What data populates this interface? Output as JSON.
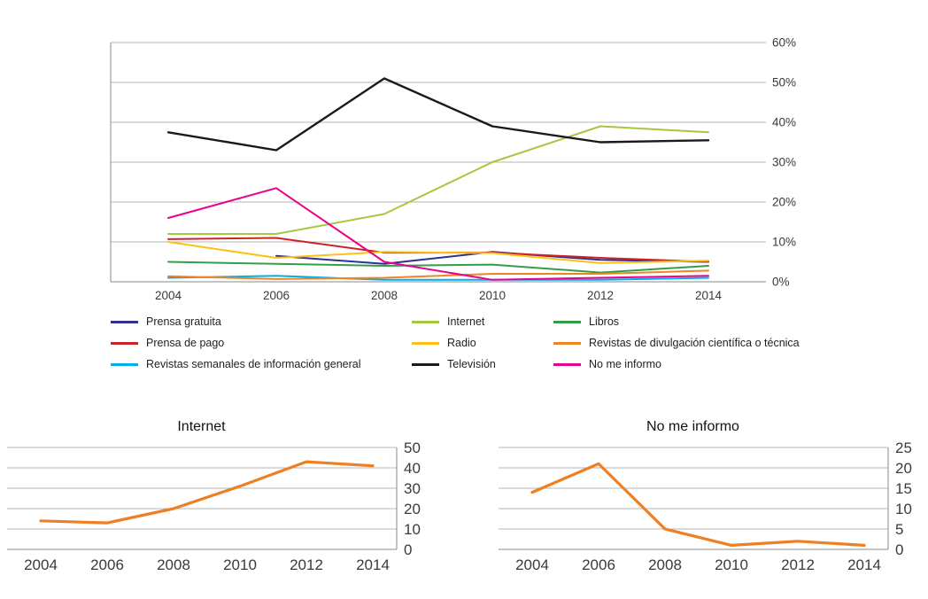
{
  "page": {
    "background": "#ffffff"
  },
  "chart_data": [
    {
      "id": "main",
      "type": "line",
      "title": "",
      "x": [
        2004,
        2006,
        2008,
        2010,
        2012,
        2014
      ],
      "ylim": [
        0,
        60
      ],
      "ytick_step": 10,
      "ytick_suffix": "%",
      "ytick_side": "right",
      "grid": true,
      "legend_position": "bottom",
      "series": [
        {
          "name": "Prensa gratuita",
          "color": "#2e3192",
          "values": [
            null,
            6.5,
            4.5,
            7.5,
            5.5,
            5
          ]
        },
        {
          "name": "Prensa de pago",
          "color": "#cc2229",
          "values": [
            10.7,
            11,
            7.3,
            7.3,
            6,
            5
          ]
        },
        {
          "name": "Revistas semanales de información general",
          "color": "#00aeef",
          "values": [
            1,
            1.5,
            0.5,
            0.5,
            0.5,
            1
          ]
        },
        {
          "name": "Internet",
          "color": "#a6c83d",
          "values": [
            12,
            12,
            17,
            30,
            39,
            37.5
          ]
        },
        {
          "name": "Radio",
          "color": "#fdc013",
          "values": [
            10,
            6,
            7.5,
            7.2,
            4.7,
            5.3
          ]
        },
        {
          "name": "Televisión",
          "color": "#1a1a1a",
          "width": 2.4,
          "values": [
            37.5,
            33,
            51,
            39,
            35,
            35.5
          ]
        },
        {
          "name": "Libros",
          "color": "#339e48",
          "values": [
            5,
            4.5,
            4,
            4.3,
            2.3,
            4
          ]
        },
        {
          "name": "Revistas de divulgación científica o técnica",
          "color": "#f0851f",
          "values": [
            1.4,
            0.7,
            1,
            2,
            2,
            2.8
          ]
        },
        {
          "name": "No me informo",
          "color": "#ec008c",
          "values": [
            16,
            23.5,
            5,
            0.5,
            1,
            1.5
          ]
        }
      ]
    },
    {
      "id": "internet_detail",
      "type": "line",
      "title": "Internet",
      "x": [
        2004,
        2006,
        2008,
        2010,
        2012,
        2014
      ],
      "ylim": [
        0,
        50
      ],
      "ytick_step": 10,
      "ytick_suffix": "",
      "ytick_side": "right",
      "grid": true,
      "series": [
        {
          "name": "Internet",
          "color": "#ee7f22",
          "values": [
            14,
            13,
            20,
            31,
            43,
            41
          ]
        }
      ]
    },
    {
      "id": "no_me_informo_detail",
      "type": "line",
      "title": "No me informo",
      "x": [
        2004,
        2006,
        2008,
        2010,
        2012,
        2014
      ],
      "ylim": [
        0,
        25
      ],
      "ytick_step": 5,
      "ytick_suffix": "",
      "ytick_side": "right",
      "grid": true,
      "series": [
        {
          "name": "No me informo",
          "color": "#ee7f22",
          "values": [
            14,
            21,
            5,
            1,
            2,
            1
          ]
        }
      ]
    }
  ]
}
